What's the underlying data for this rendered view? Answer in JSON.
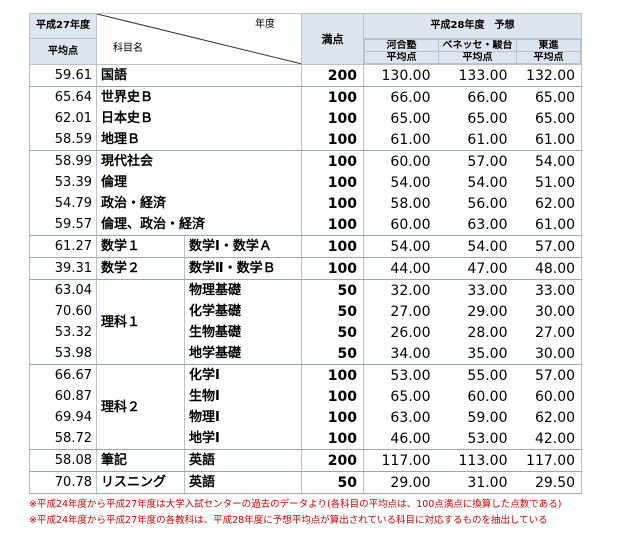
{
  "header": {
    "prev_year": "平成27年度",
    "prev_avg": "平均点",
    "diag_top": "年度",
    "diag_bottom": "科目名",
    "full_score": "満点",
    "forecast": "平成28年度　予想",
    "providers": [
      "河合塾",
      "ベネッセ・駿台",
      "東進"
    ],
    "provider_avg": "平均点"
  },
  "rows": [
    {
      "prev": "59.61",
      "subject": "国語",
      "sub": "",
      "full": "200",
      "v": [
        "130.00",
        "133.00",
        "132.00"
      ]
    },
    {
      "prev": "65.64",
      "subject": "世界史Ｂ",
      "sub": "",
      "full": "100",
      "v": [
        "66.00",
        "66.00",
        "65.00"
      ]
    },
    {
      "prev": "62.01",
      "subject": "日本史Ｂ",
      "sub": "",
      "full": "100",
      "v": [
        "65.00",
        "65.00",
        "65.00"
      ]
    },
    {
      "prev": "58.59",
      "subject": "地理Ｂ",
      "sub": "",
      "full": "100",
      "v": [
        "61.00",
        "61.00",
        "61.00"
      ]
    },
    {
      "prev": "58.99",
      "subject": "現代社会",
      "sub": "",
      "full": "100",
      "v": [
        "60.00",
        "57.00",
        "54.00"
      ]
    },
    {
      "prev": "53.39",
      "subject": "倫理",
      "sub": "",
      "full": "100",
      "v": [
        "54.00",
        "54.00",
        "51.00"
      ]
    },
    {
      "prev": "54.79",
      "subject": "政治・経済",
      "sub": "",
      "full": "100",
      "v": [
        "58.00",
        "56.00",
        "62.00"
      ]
    },
    {
      "prev": "59.57",
      "subject": "倫理、政治・経済",
      "sub": "",
      "full": "100",
      "v": [
        "60.00",
        "63.00",
        "61.00"
      ]
    },
    {
      "prev": "61.27",
      "subject": "数学１",
      "sub": "数学Ⅰ・数学Ａ",
      "full": "100",
      "v": [
        "54.00",
        "54.00",
        "57.00"
      ]
    },
    {
      "prev": "39.31",
      "subject": "数学２",
      "sub": "数学Ⅱ・数学Ｂ",
      "full": "100",
      "v": [
        "44.00",
        "47.00",
        "48.00"
      ]
    },
    {
      "prev": "63.04",
      "subject": "理科１",
      "sub": "物理基礎",
      "full": "50",
      "v": [
        "32.00",
        "33.00",
        "33.00"
      ]
    },
    {
      "prev": "70.60",
      "subject": "",
      "sub": "化学基礎",
      "full": "50",
      "v": [
        "27.00",
        "29.00",
        "30.00"
      ]
    },
    {
      "prev": "53.32",
      "subject": "",
      "sub": "生物基礎",
      "full": "50",
      "v": [
        "26.00",
        "28.00",
        "27.00"
      ]
    },
    {
      "prev": "53.98",
      "subject": "",
      "sub": "地学基礎",
      "full": "50",
      "v": [
        "34.00",
        "35.00",
        "30.00"
      ]
    },
    {
      "prev": "66.67",
      "subject": "理科２",
      "sub": "化学Ⅰ",
      "full": "100",
      "v": [
        "53.00",
        "55.00",
        "57.00"
      ]
    },
    {
      "prev": "60.87",
      "subject": "",
      "sub": "生物Ⅰ",
      "full": "100",
      "v": [
        "65.00",
        "60.00",
        "60.00"
      ]
    },
    {
      "prev": "69.94",
      "subject": "",
      "sub": "物理Ⅰ",
      "full": "100",
      "v": [
        "63.00",
        "59.00",
        "62.00"
      ]
    },
    {
      "prev": "58.72",
      "subject": "",
      "sub": "地学Ⅰ",
      "full": "100",
      "v": [
        "46.00",
        "53.00",
        "42.00"
      ]
    },
    {
      "prev": "58.08",
      "subject": "筆記",
      "sub": "英語",
      "full": "200",
      "v": [
        "117.00",
        "113.00",
        "117.00"
      ]
    },
    {
      "prev": "70.78",
      "subject": "リスニング",
      "sub": "英語",
      "full": "50",
      "v": [
        "29.00",
        "31.00",
        "29.50"
      ]
    }
  ],
  "notes": [
    "※平成24年度から平成27年度は大学入試センターの過去のデータより(各科目の平均点は、100点満点に換算した点数である)",
    "※平成24年度から平成27年度の各教科は、平成28年度に予想平均点が算出されている科目に対応するものを抽出している"
  ]
}
